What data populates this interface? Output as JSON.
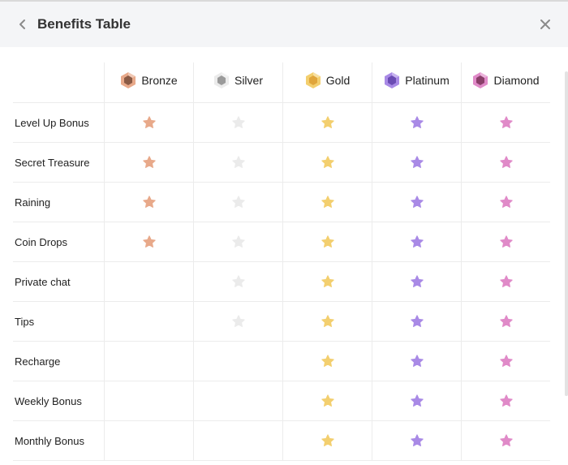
{
  "header": {
    "title": "Benefits Table",
    "back_icon": "chevron-left-icon",
    "close_icon": "close-icon"
  },
  "tiers": [
    {
      "name": "Bronze",
      "color": "#e8a98a",
      "gem_color": "#8a5a45"
    },
    {
      "name": "Silver",
      "color": "#ebebeb",
      "gem_color": "#9a9a9a"
    },
    {
      "name": "Gold",
      "color": "#f3cf6f",
      "gem_color": "#e0a53a"
    },
    {
      "name": "Platinum",
      "color": "#a98ae6",
      "gem_color": "#6a4bb3"
    },
    {
      "name": "Diamond",
      "color": "#e08ac8",
      "gem_color": "#8a3f6a"
    }
  ],
  "benefits": [
    {
      "label": "Level Up Bonus",
      "tiers": [
        true,
        true,
        true,
        true,
        true
      ]
    },
    {
      "label": "Secret Treasure",
      "tiers": [
        true,
        true,
        true,
        true,
        true
      ]
    },
    {
      "label": "Raining",
      "tiers": [
        true,
        true,
        true,
        true,
        true
      ]
    },
    {
      "label": "Coin Drops",
      "tiers": [
        true,
        true,
        true,
        true,
        true
      ]
    },
    {
      "label": "Private chat",
      "tiers": [
        false,
        true,
        true,
        true,
        true
      ]
    },
    {
      "label": "Tips",
      "tiers": [
        false,
        true,
        true,
        true,
        true
      ]
    },
    {
      "label": "Recharge",
      "tiers": [
        false,
        false,
        true,
        true,
        true
      ]
    },
    {
      "label": "Weekly Bonus",
      "tiers": [
        false,
        false,
        true,
        true,
        true
      ]
    },
    {
      "label": "Monthly Bonus",
      "tiers": [
        false,
        false,
        true,
        true,
        true
      ]
    }
  ]
}
